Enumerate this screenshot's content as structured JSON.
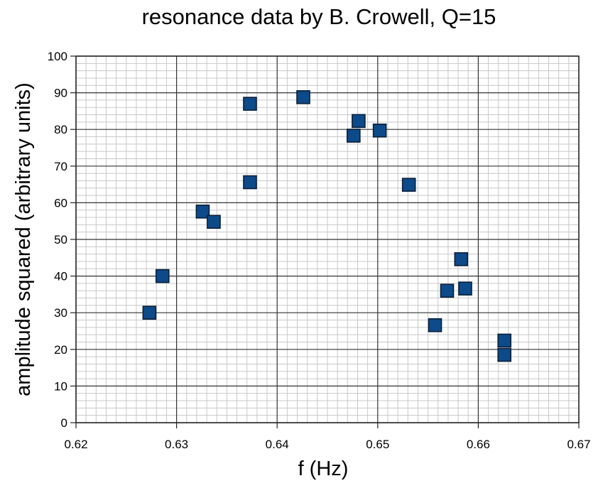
{
  "chart_data": {
    "type": "scatter",
    "title": "resonance data by B. Crowell, Q=15",
    "xlabel": "f (Hz)",
    "ylabel": "amplitude squared (arbitrary units)",
    "xlim": [
      0.62,
      0.67
    ],
    "ylim": [
      0,
      100
    ],
    "x_ticks": [
      "0.62",
      "0.63",
      "0.64",
      "0.65",
      "0.66",
      "0.67"
    ],
    "y_ticks": [
      "0",
      "10",
      "20",
      "30",
      "40",
      "50",
      "60",
      "70",
      "80",
      "90",
      "100"
    ],
    "x_tick_values": [
      0.62,
      0.63,
      0.64,
      0.65,
      0.66,
      0.67
    ],
    "y_tick_values": [
      0,
      10,
      20,
      30,
      40,
      50,
      60,
      70,
      80,
      90,
      100
    ],
    "x_minor_step": 0.001,
    "y_minor_step": 2,
    "grid": true,
    "legend": "none",
    "marker": "square",
    "marker_color": "#0d4a8a",
    "marker_edge_color": "#0a1f38",
    "points": [
      {
        "x": 0.6273,
        "y": 30
      },
      {
        "x": 0.6286,
        "y": 40
      },
      {
        "x": 0.6326,
        "y": 57.6
      },
      {
        "x": 0.6337,
        "y": 54.8
      },
      {
        "x": 0.6373,
        "y": 87
      },
      {
        "x": 0.6373,
        "y": 65.6
      },
      {
        "x": 0.6426,
        "y": 88.8
      },
      {
        "x": 0.6476,
        "y": 78.3
      },
      {
        "x": 0.6481,
        "y": 82.3
      },
      {
        "x": 0.6502,
        "y": 79.7
      },
      {
        "x": 0.6531,
        "y": 64.9
      },
      {
        "x": 0.6557,
        "y": 26.6
      },
      {
        "x": 0.6569,
        "y": 36
      },
      {
        "x": 0.6583,
        "y": 44.6
      },
      {
        "x": 0.6587,
        "y": 36.6
      },
      {
        "x": 0.6626,
        "y": 22.4
      },
      {
        "x": 0.6626,
        "y": 18.5
      }
    ]
  }
}
